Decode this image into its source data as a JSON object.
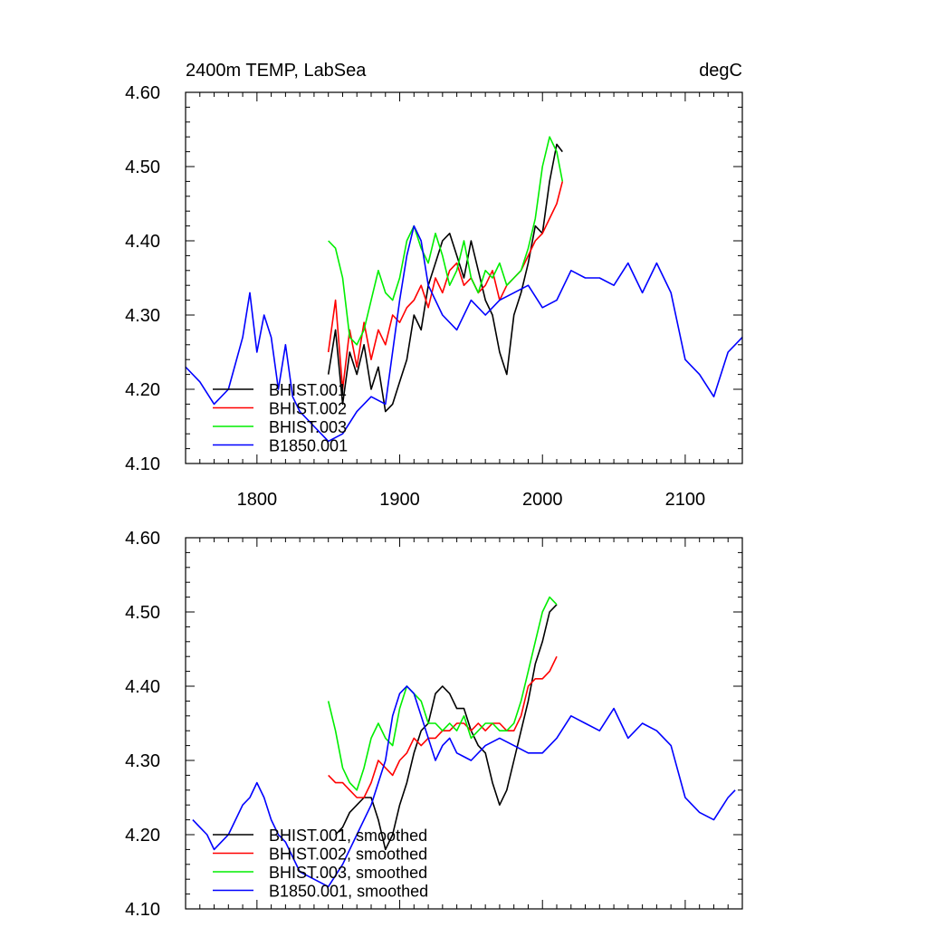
{
  "chart_data": [
    {
      "type": "line",
      "title": "2400m TEMP, LabSea",
      "units": "degC",
      "xlabel": "",
      "ylabel": "",
      "xlim": [
        1750,
        2140
      ],
      "ylim": [
        4.1,
        4.6
      ],
      "xticks": [
        1800,
        1900,
        2000,
        2100
      ],
      "xtick_labels": [
        "1800",
        "1900",
        "2000",
        "2100"
      ],
      "yticks": [
        4.1,
        4.2,
        4.3,
        4.4,
        4.5,
        4.6
      ],
      "ytick_labels": [
        "4.10",
        "4.20",
        "4.30",
        "4.40",
        "4.50",
        "4.60"
      ],
      "legend_position": "bottom-left",
      "series": [
        {
          "name": "BHIST.001",
          "color": "#000000",
          "x": [
            1850,
            1855,
            1860,
            1865,
            1870,
            1875,
            1880,
            1885,
            1890,
            1895,
            1900,
            1905,
            1910,
            1915,
            1920,
            1925,
            1930,
            1935,
            1940,
            1945,
            1950,
            1955,
            1960,
            1965,
            1970,
            1975,
            1980,
            1985,
            1990,
            1995,
            2000,
            2005,
            2010,
            2014
          ],
          "values": [
            4.22,
            4.28,
            4.18,
            4.25,
            4.22,
            4.26,
            4.2,
            4.23,
            4.17,
            4.18,
            4.21,
            4.24,
            4.3,
            4.28,
            4.34,
            4.37,
            4.4,
            4.41,
            4.38,
            4.35,
            4.4,
            4.36,
            4.32,
            4.3,
            4.25,
            4.22,
            4.3,
            4.33,
            4.37,
            4.42,
            4.41,
            4.48,
            4.53,
            4.52
          ]
        },
        {
          "name": "BHIST.002",
          "color": "#ff0000",
          "x": [
            1850,
            1855,
            1860,
            1865,
            1870,
            1875,
            1880,
            1885,
            1890,
            1895,
            1900,
            1905,
            1910,
            1915,
            1920,
            1925,
            1930,
            1935,
            1940,
            1945,
            1950,
            1955,
            1960,
            1965,
            1970,
            1975,
            1980,
            1985,
            1990,
            1995,
            2000,
            2005,
            2010,
            2014
          ],
          "values": [
            4.25,
            4.32,
            4.2,
            4.28,
            4.23,
            4.29,
            4.24,
            4.28,
            4.26,
            4.3,
            4.29,
            4.31,
            4.32,
            4.34,
            4.31,
            4.35,
            4.33,
            4.36,
            4.37,
            4.34,
            4.35,
            4.33,
            4.34,
            4.36,
            4.32,
            4.34,
            4.35,
            4.36,
            4.38,
            4.4,
            4.41,
            4.43,
            4.45,
            4.48
          ]
        },
        {
          "name": "BHIST.003",
          "color": "#00ee00",
          "x": [
            1850,
            1855,
            1860,
            1865,
            1870,
            1875,
            1880,
            1885,
            1890,
            1895,
            1900,
            1905,
            1910,
            1915,
            1920,
            1925,
            1930,
            1935,
            1940,
            1945,
            1950,
            1955,
            1960,
            1965,
            1970,
            1975,
            1980,
            1985,
            1990,
            1995,
            2000,
            2005,
            2010,
            2014
          ],
          "values": [
            4.4,
            4.39,
            4.35,
            4.27,
            4.26,
            4.28,
            4.32,
            4.36,
            4.33,
            4.32,
            4.35,
            4.4,
            4.42,
            4.39,
            4.37,
            4.41,
            4.38,
            4.34,
            4.36,
            4.4,
            4.35,
            4.33,
            4.36,
            4.35,
            4.37,
            4.34,
            4.35,
            4.36,
            4.39,
            4.43,
            4.5,
            4.54,
            4.52,
            4.48
          ]
        },
        {
          "name": "B1850.001",
          "color": "#0000ff",
          "x": [
            1750,
            1760,
            1770,
            1780,
            1790,
            1795,
            1800,
            1805,
            1810,
            1815,
            1820,
            1825,
            1830,
            1840,
            1850,
            1860,
            1870,
            1880,
            1890,
            1900,
            1905,
            1910,
            1915,
            1920,
            1930,
            1940,
            1950,
            1960,
            1970,
            1980,
            1990,
            2000,
            2010,
            2020,
            2030,
            2040,
            2050,
            2060,
            2070,
            2080,
            2090,
            2100,
            2110,
            2120,
            2130,
            2140
          ],
          "values": [
            4.23,
            4.21,
            4.18,
            4.2,
            4.27,
            4.33,
            4.25,
            4.3,
            4.27,
            4.2,
            4.26,
            4.19,
            4.17,
            4.15,
            4.13,
            4.14,
            4.17,
            4.19,
            4.18,
            4.32,
            4.38,
            4.42,
            4.4,
            4.34,
            4.3,
            4.28,
            4.32,
            4.3,
            4.32,
            4.33,
            4.34,
            4.31,
            4.32,
            4.36,
            4.35,
            4.35,
            4.34,
            4.37,
            4.33,
            4.37,
            4.33,
            4.24,
            4.22,
            4.19,
            4.25,
            4.27
          ]
        }
      ]
    },
    {
      "type": "line",
      "title": "",
      "units": "",
      "xlabel": "",
      "ylabel": "",
      "xlim": [
        1750,
        2140
      ],
      "ylim": [
        4.1,
        4.6
      ],
      "xticks": [
        1800,
        1900,
        2000,
        2100
      ],
      "xtick_labels": [],
      "yticks": [
        4.1,
        4.2,
        4.3,
        4.4,
        4.5,
        4.6
      ],
      "ytick_labels": [
        "4.10",
        "4.20",
        "4.30",
        "4.40",
        "4.50",
        "4.60"
      ],
      "legend_position": "bottom-left",
      "series": [
        {
          "name": "BHIST.001, smoothed",
          "color": "#000000",
          "x": [
            1855,
            1860,
            1865,
            1870,
            1875,
            1880,
            1885,
            1890,
            1895,
            1900,
            1905,
            1910,
            1915,
            1920,
            1925,
            1930,
            1935,
            1940,
            1945,
            1950,
            1955,
            1960,
            1965,
            1970,
            1975,
            1980,
            1985,
            1990,
            1995,
            2000,
            2005,
            2010
          ],
          "values": [
            4.2,
            4.21,
            4.23,
            4.24,
            4.25,
            4.25,
            4.22,
            4.18,
            4.2,
            4.24,
            4.27,
            4.31,
            4.34,
            4.35,
            4.39,
            4.4,
            4.39,
            4.37,
            4.37,
            4.34,
            4.32,
            4.31,
            4.27,
            4.24,
            4.26,
            4.3,
            4.34,
            4.38,
            4.43,
            4.46,
            4.5,
            4.51
          ]
        },
        {
          "name": "BHIST.002, smoothed",
          "color": "#ff0000",
          "x": [
            1850,
            1855,
            1860,
            1865,
            1870,
            1875,
            1880,
            1885,
            1890,
            1895,
            1900,
            1905,
            1910,
            1915,
            1920,
            1925,
            1930,
            1935,
            1940,
            1945,
            1950,
            1955,
            1960,
            1965,
            1970,
            1975,
            1980,
            1985,
            1990,
            1995,
            2000,
            2005,
            2010
          ],
          "values": [
            4.28,
            4.27,
            4.27,
            4.26,
            4.25,
            4.25,
            4.27,
            4.3,
            4.29,
            4.28,
            4.3,
            4.31,
            4.33,
            4.32,
            4.33,
            4.33,
            4.34,
            4.34,
            4.35,
            4.35,
            4.34,
            4.35,
            4.34,
            4.35,
            4.35,
            4.34,
            4.34,
            4.36,
            4.4,
            4.41,
            4.41,
            4.42,
            4.44
          ]
        },
        {
          "name": "BHIST.003, smoothed",
          "color": "#00ee00",
          "x": [
            1850,
            1855,
            1860,
            1865,
            1870,
            1875,
            1880,
            1885,
            1890,
            1895,
            1900,
            1905,
            1910,
            1915,
            1920,
            1925,
            1930,
            1935,
            1940,
            1945,
            1950,
            1955,
            1960,
            1965,
            1970,
            1975,
            1980,
            1985,
            1990,
            1995,
            2000,
            2005,
            2010
          ],
          "values": [
            4.38,
            4.34,
            4.29,
            4.27,
            4.26,
            4.29,
            4.33,
            4.35,
            4.33,
            4.32,
            4.37,
            4.4,
            4.39,
            4.38,
            4.35,
            4.35,
            4.34,
            4.35,
            4.34,
            4.36,
            4.33,
            4.34,
            4.35,
            4.35,
            4.34,
            4.34,
            4.35,
            4.38,
            4.42,
            4.46,
            4.5,
            4.52,
            4.51
          ]
        },
        {
          "name": "B1850.001, smoothed",
          "color": "#0000ff",
          "x": [
            1755,
            1760,
            1765,
            1770,
            1775,
            1780,
            1785,
            1790,
            1795,
            1800,
            1805,
            1810,
            1815,
            1820,
            1825,
            1830,
            1840,
            1850,
            1860,
            1870,
            1880,
            1890,
            1895,
            1900,
            1905,
            1910,
            1915,
            1920,
            1925,
            1930,
            1935,
            1940,
            1950,
            1960,
            1970,
            1980,
            1990,
            2000,
            2010,
            2020,
            2030,
            2040,
            2050,
            2060,
            2070,
            2080,
            2090,
            2100,
            2110,
            2120,
            2130,
            2135
          ],
          "values": [
            4.22,
            4.21,
            4.2,
            4.18,
            4.19,
            4.2,
            4.22,
            4.24,
            4.25,
            4.27,
            4.25,
            4.22,
            4.2,
            4.19,
            4.17,
            4.15,
            4.14,
            4.13,
            4.16,
            4.2,
            4.24,
            4.3,
            4.36,
            4.39,
            4.4,
            4.39,
            4.36,
            4.33,
            4.3,
            4.32,
            4.33,
            4.31,
            4.3,
            4.32,
            4.33,
            4.32,
            4.31,
            4.31,
            4.33,
            4.36,
            4.35,
            4.34,
            4.37,
            4.33,
            4.35,
            4.34,
            4.32,
            4.25,
            4.23,
            4.22,
            4.25,
            4.26
          ]
        }
      ]
    }
  ]
}
